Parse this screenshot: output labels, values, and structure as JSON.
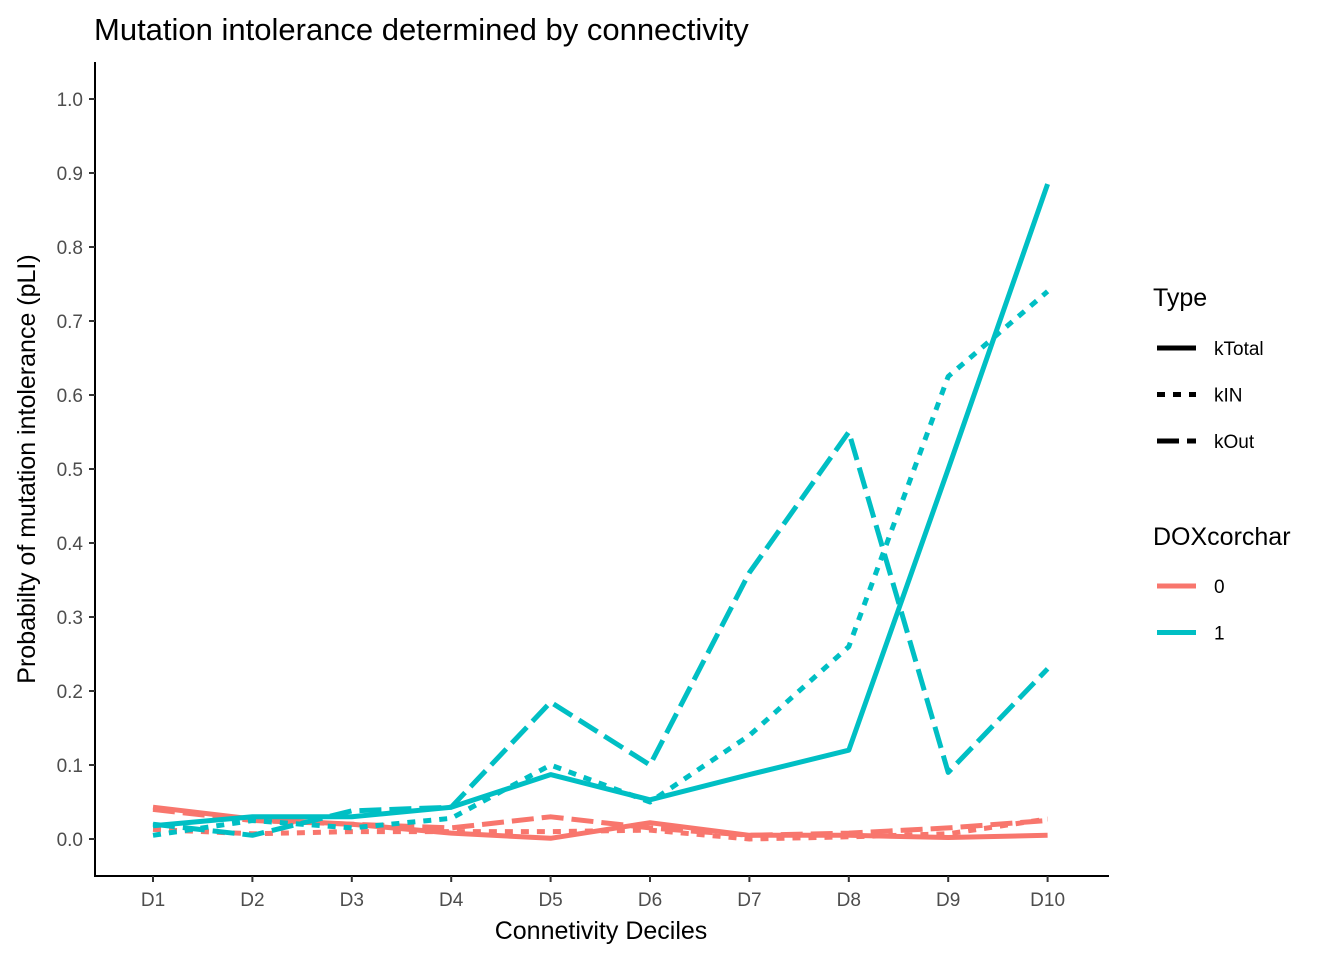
{
  "chart_data": {
    "type": "line",
    "title": "Mutation intolerance determined by connectivity",
    "xlabel": "Connetivity Deciles",
    "ylabel": "Probabilty of mutation intolerance (pLI)",
    "categories": [
      "D1",
      "D2",
      "D3",
      "D4",
      "D5",
      "D6",
      "D7",
      "D8",
      "D9",
      "D10"
    ],
    "ylim": [
      -0.05,
      1.05
    ],
    "yticks": [
      "0.0",
      "0.1",
      "0.2",
      "0.3",
      "0.4",
      "0.5",
      "0.6",
      "0.7",
      "0.8",
      "0.9",
      "1.0"
    ],
    "grid": false,
    "legend_position": "right",
    "type_legend": {
      "title": "Type",
      "entries": [
        {
          "label": "kTotal",
          "linetype": "solid"
        },
        {
          "label": "kIN",
          "linetype": "dashed"
        },
        {
          "label": "kOut",
          "linetype": "longdash"
        }
      ]
    },
    "color_legend": {
      "title": "DOXcorchar",
      "entries": [
        {
          "label": "0",
          "color": "#F8766D"
        },
        {
          "label": "1",
          "color": "#00BFC4"
        }
      ]
    },
    "series": [
      {
        "type": "kTotal",
        "group": "0",
        "values": [
          0.043,
          0.027,
          0.02,
          0.008,
          0.001,
          0.022,
          0.005,
          0.005,
          0.002,
          0.005
        ]
      },
      {
        "type": "kIN",
        "group": "0",
        "values": [
          0.013,
          0.007,
          0.01,
          0.01,
          0.01,
          0.012,
          0.0,
          0.003,
          0.007,
          0.027
        ]
      },
      {
        "type": "kOut",
        "group": "0",
        "values": [
          0.04,
          0.025,
          0.02,
          0.015,
          0.03,
          0.015,
          0.005,
          0.008,
          0.015,
          0.025
        ]
      },
      {
        "type": "kTotal",
        "group": "1",
        "values": [
          0.018,
          0.03,
          0.03,
          0.043,
          0.087,
          0.053,
          0.087,
          0.12,
          0.5,
          0.885
        ]
      },
      {
        "type": "kIN",
        "group": "1",
        "values": [
          0.005,
          0.025,
          0.015,
          0.028,
          0.1,
          0.05,
          0.14,
          0.26,
          0.625,
          0.74
        ]
      },
      {
        "type": "kOut",
        "group": "1",
        "values": [
          0.02,
          0.005,
          0.038,
          0.043,
          0.185,
          0.1,
          0.36,
          0.55,
          0.09,
          0.23
        ]
      }
    ]
  }
}
